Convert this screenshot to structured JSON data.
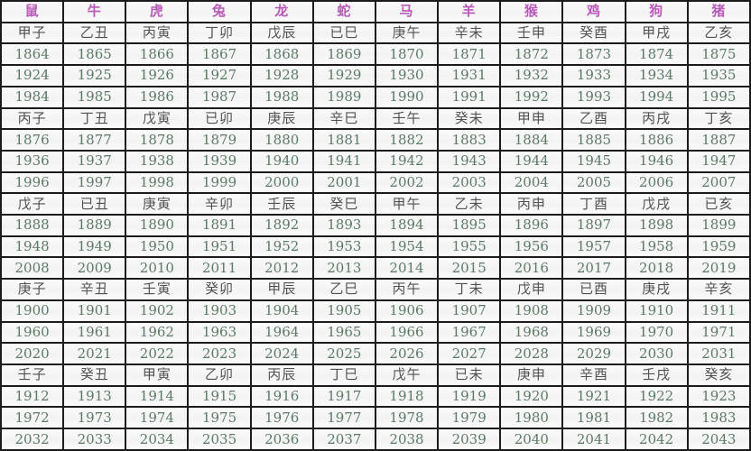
{
  "colors": {
    "border": "#1b1b1b",
    "animal_header": "#b95ab9",
    "ganzhi_text": "#525252",
    "year_text": "#5d7a66",
    "background": "#f9f9f9"
  },
  "table": {
    "animals": [
      "鼠",
      "牛",
      "虎",
      "兔",
      "龙",
      "蛇",
      "马",
      "羊",
      "猴",
      "鸡",
      "狗",
      "猪"
    ],
    "groups": [
      {
        "ganzhi": [
          "甲子",
          "乙丑",
          "丙寅",
          "丁卯",
          "戊辰",
          "已巳",
          "庚午",
          "辛未",
          "壬申",
          "癸酉",
          "甲戌",
          "乙亥"
        ],
        "year_rows": [
          [
            1864,
            1865,
            1866,
            1867,
            1868,
            1869,
            1870,
            1871,
            1872,
            1873,
            1874,
            1875
          ],
          [
            1924,
            1925,
            1926,
            1927,
            1928,
            1929,
            1930,
            1931,
            1932,
            1933,
            1934,
            1935
          ],
          [
            1984,
            1985,
            1986,
            1987,
            1988,
            1989,
            1990,
            1991,
            1992,
            1993,
            1994,
            1995
          ]
        ]
      },
      {
        "ganzhi": [
          "丙子",
          "丁丑",
          "戊寅",
          "已卯",
          "庚辰",
          "辛巳",
          "壬午",
          "癸未",
          "甲申",
          "乙酉",
          "丙戌",
          "丁亥"
        ],
        "year_rows": [
          [
            1876,
            1877,
            1878,
            1879,
            1880,
            1881,
            1882,
            1883,
            1884,
            1885,
            1886,
            1887
          ],
          [
            1936,
            1937,
            1938,
            1939,
            1940,
            1941,
            1942,
            1943,
            1944,
            1945,
            1946,
            1947
          ],
          [
            1996,
            1997,
            1998,
            1999,
            2000,
            2001,
            2002,
            2003,
            2004,
            2005,
            2006,
            2007
          ]
        ]
      },
      {
        "ganzhi": [
          "戊子",
          "已丑",
          "庚寅",
          "辛卯",
          "壬辰",
          "癸巳",
          "甲午",
          "乙未",
          "丙申",
          "丁酉",
          "戊戌",
          "已亥"
        ],
        "year_rows": [
          [
            1888,
            1889,
            1890,
            1891,
            1892,
            1893,
            1894,
            1895,
            1896,
            1897,
            1898,
            1899
          ],
          [
            1948,
            1949,
            1950,
            1951,
            1952,
            1953,
            1954,
            1955,
            1956,
            1957,
            1958,
            1959
          ],
          [
            2008,
            2009,
            2010,
            2011,
            2012,
            2013,
            2014,
            2015,
            2016,
            2017,
            2018,
            2019
          ]
        ]
      },
      {
        "ganzhi": [
          "庚子",
          "辛丑",
          "壬寅",
          "癸卯",
          "甲辰",
          "乙巳",
          "丙午",
          "丁未",
          "戊申",
          "已酉",
          "庚戌",
          "辛亥"
        ],
        "year_rows": [
          [
            1900,
            1901,
            1902,
            1903,
            1904,
            1905,
            1906,
            1907,
            1908,
            1909,
            1910,
            1911
          ],
          [
            1960,
            1961,
            1962,
            1963,
            1964,
            1965,
            1966,
            1967,
            1968,
            1969,
            1970,
            1971
          ],
          [
            2020,
            2021,
            2022,
            2023,
            2024,
            2025,
            2026,
            2027,
            2028,
            2029,
            2030,
            2031
          ]
        ]
      },
      {
        "ganzhi": [
          "壬子",
          "癸丑",
          "甲寅",
          "乙卯",
          "丙辰",
          "丁巳",
          "戊午",
          "已未",
          "庚申",
          "辛酉",
          "壬戌",
          "癸亥"
        ],
        "year_rows": [
          [
            1912,
            1913,
            1914,
            1915,
            1916,
            1917,
            1918,
            1919,
            1920,
            1921,
            1922,
            1923
          ],
          [
            1972,
            1973,
            1974,
            1975,
            1976,
            1977,
            1978,
            1979,
            1980,
            1981,
            1982,
            1983
          ],
          [
            2032,
            2033,
            2034,
            2035,
            2036,
            2037,
            2038,
            2039,
            2040,
            2041,
            2042,
            2043
          ]
        ]
      }
    ]
  }
}
